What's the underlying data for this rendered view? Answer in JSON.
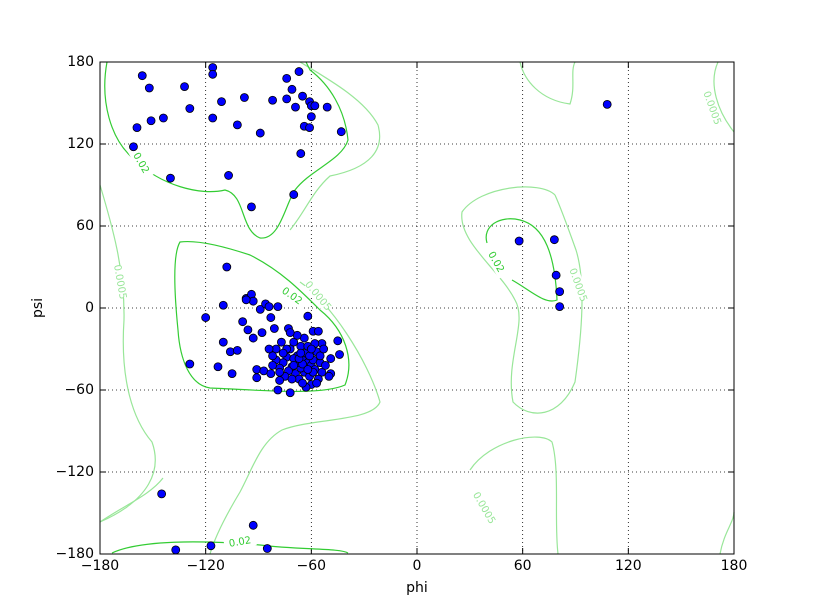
{
  "chart_data": {
    "type": "scatter",
    "x_label": "phi",
    "y_label": "psi",
    "x": [
      -156,
      -152,
      -159,
      -151,
      -144,
      -161,
      -132,
      -129,
      -116,
      -116,
      -111,
      -116,
      -98,
      -102,
      -89,
      -107,
      -140,
      -94,
      -82,
      -74,
      -71,
      -74,
      -69,
      -67,
      -65,
      -64,
      -61,
      -60,
      -58,
      -60,
      -61,
      -66,
      -70,
      -51,
      -43,
      108,
      58,
      78,
      79,
      81,
      81,
      -145,
      -137,
      -117,
      -93,
      -85,
      -108,
      -110,
      -120,
      -129,
      -110,
      -106,
      -102,
      -99,
      -97,
      -94,
      -93,
      -97,
      -89,
      -86,
      -84,
      -79,
      -83,
      -88,
      -96,
      -93,
      -113,
      -105,
      -91,
      -91,
      -87,
      -79,
      -72,
      -62,
      -59,
      -56,
      -44,
      -45,
      -49,
      -49,
      -54,
      -81,
      -73,
      -70,
      -72,
      -68,
      -65,
      -62,
      -60,
      -58,
      -63,
      -66,
      -74,
      -76,
      -78,
      -80,
      -80,
      -77,
      -71,
      -69,
      -67,
      -64,
      -61,
      -59,
      -57,
      -55,
      -54,
      -56,
      -60,
      -63,
      -66,
      -68,
      -70,
      -73,
      -75,
      -78,
      -82,
      -82,
      -84,
      -62,
      -58,
      -55,
      -52,
      -50,
      -64,
      -68,
      -72,
      -61,
      -65,
      -59,
      -62,
      -67,
      -70,
      -74,
      -76,
      -53,
      -57,
      -65,
      -71,
      -78,
      -83,
      -60,
      -66
    ],
    "values": [
      170,
      161,
      132,
      137,
      139,
      118,
      162,
      146,
      176,
      171,
      151,
      139,
      154,
      134,
      128,
      97,
      95,
      74,
      152,
      168,
      160,
      153,
      147,
      173,
      155,
      133,
      151,
      148,
      148,
      140,
      132,
      113,
      83,
      147,
      129,
      149,
      49,
      50,
      24,
      12,
      1,
      -136,
      -177,
      -174,
      -159,
      -176,
      30,
      2,
      -7,
      -41,
      -25,
      -32,
      -31,
      -10,
      7,
      10,
      5,
      6,
      -1,
      3,
      1,
      1,
      -7,
      -18,
      -16,
      -22,
      -43,
      -48,
      -45,
      -51,
      -46,
      -60,
      -62,
      -6,
      -17,
      -17,
      -34,
      -24,
      -37,
      -48,
      -26,
      -15,
      -15,
      -25,
      -30,
      -35,
      -38,
      -40,
      -42,
      -45,
      -33,
      -28,
      -36,
      -40,
      -44,
      -30,
      -38,
      -25,
      -43,
      -48,
      -52,
      -47,
      -50,
      -38,
      -32,
      -40,
      -47,
      -52,
      -56,
      -58,
      -44,
      -40,
      -37,
      -46,
      -50,
      -53,
      -35,
      -42,
      -30,
      -28,
      -26,
      -35,
      -42,
      -50,
      -22,
      -20,
      -18,
      -35,
      -41,
      -47,
      -45,
      -37,
      -42,
      -30,
      -33,
      -30,
      -55,
      -55,
      -52,
      -47,
      -48,
      -30,
      -33
    ],
    "color": "#0000ff",
    "contour_levels": [
      0.0005,
      0.02
    ],
    "contour_colors": [
      "#99e699",
      "#33cc33"
    ],
    "xlim": [
      -180,
      180
    ],
    "ylim": [
      -180,
      180
    ],
    "xticks": [
      {
        "value": -180,
        "label": "−180"
      },
      {
        "value": -120,
        "label": "−120"
      },
      {
        "value": -60,
        "label": "−60"
      },
      0,
      60,
      120,
      180
    ],
    "yticks": [
      {
        "value": -180,
        "label": "−180"
      },
      {
        "value": -120,
        "label": "−120"
      },
      {
        "value": -60,
        "label": "−60"
      },
      0,
      60,
      120,
      180
    ],
    "grid": true
  }
}
